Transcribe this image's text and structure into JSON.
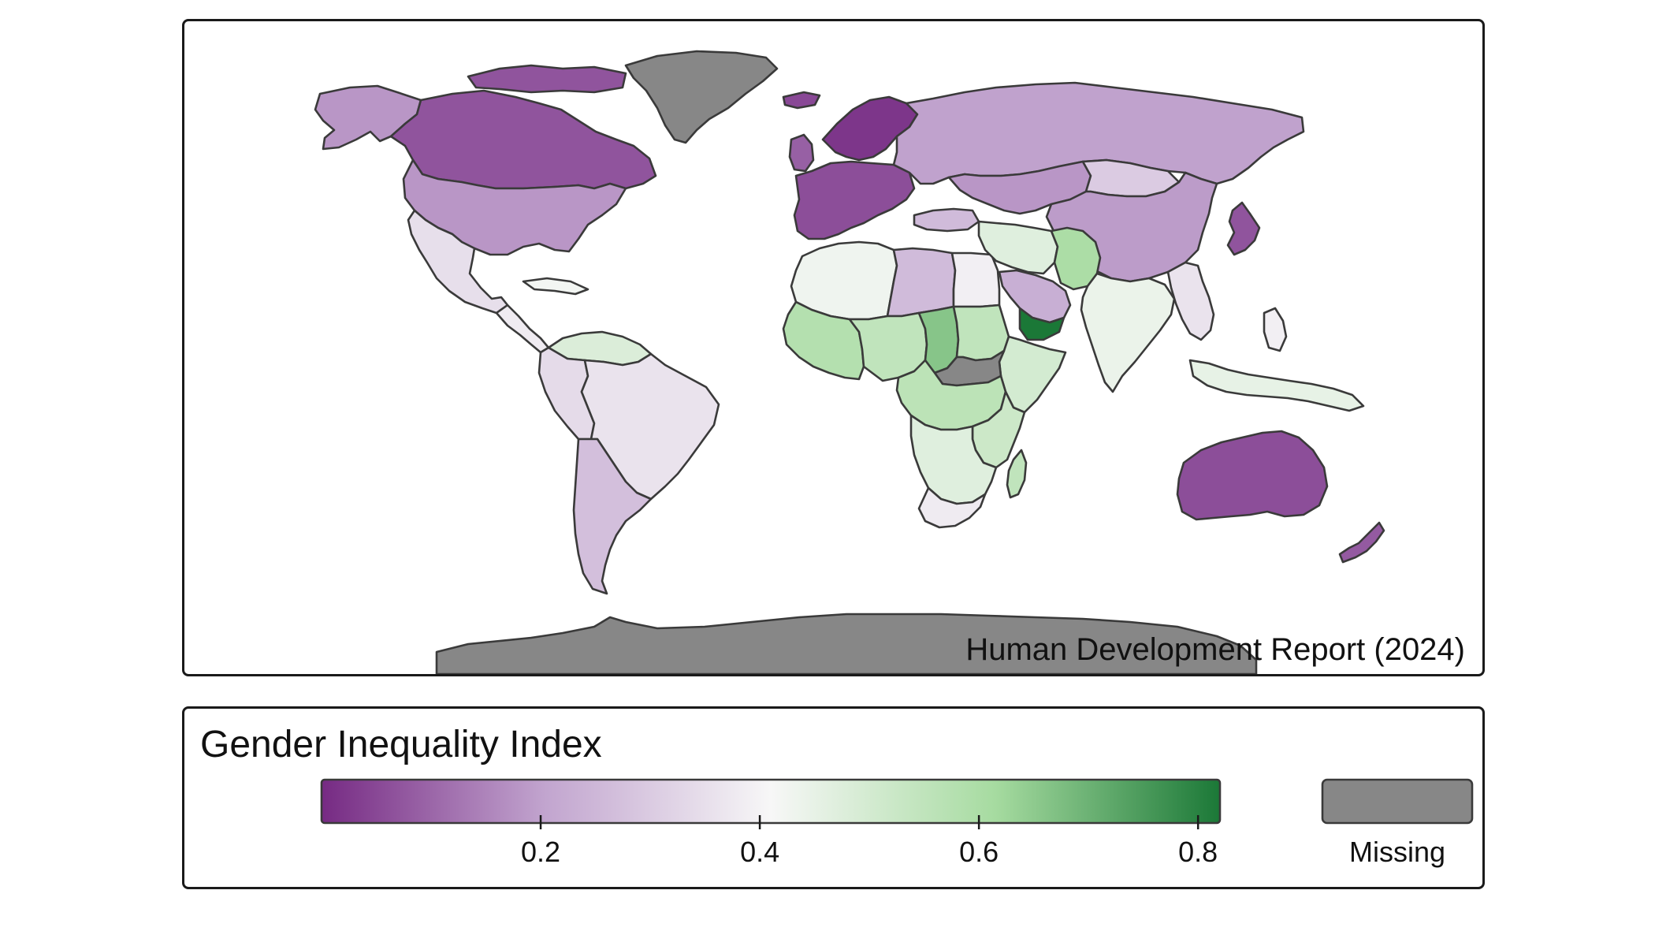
{
  "map": {
    "credit": "Human Development Report (2024)",
    "colors": {
      "ramp": [
        "#762a83",
        "#c2a5cf",
        "#f7f7f7",
        "#a6dba0",
        "#1b7837"
      ],
      "missing": "#878787",
      "border": "#3a3a3a"
    },
    "regions": [
      {
        "id": "canada",
        "value": 0.07
      },
      {
        "id": "alaska",
        "value": 0.18
      },
      {
        "id": "usa",
        "value": 0.18
      },
      {
        "id": "greenland",
        "value": null
      },
      {
        "id": "canadian-arctic",
        "value": 0.07
      },
      {
        "id": "mexico",
        "value": 0.35
      },
      {
        "id": "central-america",
        "value": 0.38
      },
      {
        "id": "caribbean",
        "value": 0.42
      },
      {
        "id": "venezuela-guianas",
        "value": 0.48
      },
      {
        "id": "andean",
        "value": 0.34
      },
      {
        "id": "brazil",
        "value": 0.36
      },
      {
        "id": "southern-cone",
        "value": 0.27
      },
      {
        "id": "europe-west",
        "value": 0.06
      },
      {
        "id": "scandinavia",
        "value": 0.02
      },
      {
        "id": "iceland",
        "value": 0.05
      },
      {
        "id": "uk",
        "value": 0.09
      },
      {
        "id": "russia",
        "value": 0.2
      },
      {
        "id": "central-asia",
        "value": 0.18
      },
      {
        "id": "mongolia",
        "value": 0.3
      },
      {
        "id": "china",
        "value": 0.19
      },
      {
        "id": "korea-japan",
        "value": 0.07
      },
      {
        "id": "turkey",
        "value": 0.26
      },
      {
        "id": "iran-iraq",
        "value": 0.47
      },
      {
        "id": "saudi-arabia",
        "value": 0.23
      },
      {
        "id": "yemen",
        "value": 0.82
      },
      {
        "id": "afghanistan-pakistan",
        "value": 0.6
      },
      {
        "id": "india",
        "value": 0.44
      },
      {
        "id": "southeast-asia",
        "value": 0.36
      },
      {
        "id": "indonesia-png",
        "value": 0.45
      },
      {
        "id": "philippines",
        "value": 0.39
      },
      {
        "id": "maghreb",
        "value": 0.43
      },
      {
        "id": "libya",
        "value": 0.26
      },
      {
        "id": "egypt",
        "value": 0.39
      },
      {
        "id": "west-africa",
        "value": 0.58
      },
      {
        "id": "sahel",
        "value": 0.55
      },
      {
        "id": "chad",
        "value": 0.66
      },
      {
        "id": "sudan",
        "value": 0.55
      },
      {
        "id": "ethiopia-somalia",
        "value": 0.5
      },
      {
        "id": "south-sudan-car",
        "value": null
      },
      {
        "id": "central-africa",
        "value": 0.56
      },
      {
        "id": "east-africa",
        "value": 0.52
      },
      {
        "id": "southern-africa",
        "value": 0.47
      },
      {
        "id": "south-africa",
        "value": 0.38
      },
      {
        "id": "madagascar",
        "value": 0.55
      },
      {
        "id": "australia",
        "value": 0.06
      },
      {
        "id": "new-zealand",
        "value": 0.08
      },
      {
        "id": "antarctica",
        "value": null
      }
    ]
  },
  "legend": {
    "title": "Gender Inequality Index",
    "min": 0.0,
    "max": 0.82,
    "ticks": [
      "0.2",
      "0.4",
      "0.6",
      "0.8"
    ],
    "tick_values": [
      0.2,
      0.4,
      0.6,
      0.8
    ],
    "missing_label": "Missing"
  }
}
